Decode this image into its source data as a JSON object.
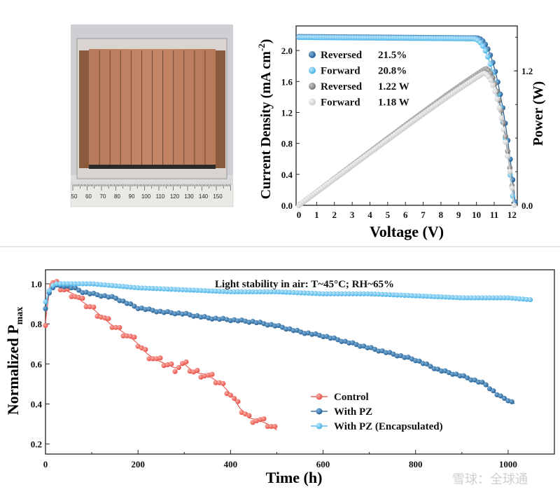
{
  "photo": {
    "ruler_ticks": [
      "50",
      "60",
      "70",
      "80",
      "90",
      "100",
      "110",
      "120",
      "130",
      "140",
      "150"
    ]
  },
  "colors": {
    "dark_blue": "#1f5a8e",
    "light_blue": "#3fb0e8",
    "dark_gray": "#7f7f7f",
    "light_gray": "#d4d4d4",
    "red": "#e8483f"
  },
  "chart_data": [
    {
      "type": "line",
      "title": "",
      "xlabel": "Voltage (V)",
      "ylabel": "Current Density (mA cm-2)",
      "ylabel_main": "Current Density (mA cm",
      "ylabel_sup": "-2",
      "ylabel_close": ")",
      "y2label": "Power (W)",
      "xlim": [
        0,
        12.3
      ],
      "ylim": [
        0,
        2.2
      ],
      "y2lim": [
        0,
        1.52
      ],
      "x_ticks": [
        "0",
        "1",
        "2",
        "3",
        "4",
        "5",
        "6",
        "7",
        "8",
        "9",
        "10",
        "11",
        "12"
      ],
      "y_ticks": [
        "0.0",
        "0.4",
        "0.8",
        "1.2",
        "1.6",
        "2.0"
      ],
      "y2_ticks": [
        "0.0",
        "1.2"
      ],
      "legend": [
        {
          "label": "Reversed",
          "value": "21.5%"
        },
        {
          "label": "Forward",
          "value": "20.8%"
        },
        {
          "label": "Reversed",
          "value": "1.22 W"
        },
        {
          "label": "Forward",
          "value": "1.18 W"
        }
      ],
      "series": [
        {
          "name": "Reversed J-V",
          "axis": "left",
          "color": "#1f5a8e",
          "jsc": 2.18,
          "voc": 12.2,
          "knee": 10.0
        },
        {
          "name": "Forward J-V",
          "axis": "left",
          "color": "#3fb0e8",
          "jsc": 2.17,
          "voc": 12.1,
          "knee": 9.8
        },
        {
          "name": "Reversed Power",
          "axis": "right",
          "color": "#7f7f7f",
          "pmax": 1.22,
          "vmp": 10.5
        },
        {
          "name": "Forward Power",
          "axis": "right",
          "color": "#d4d4d4",
          "pmax": 1.18,
          "vmp": 10.4
        }
      ]
    },
    {
      "type": "line",
      "title": "Light stability in air: T~45°C; RH~65%",
      "xlabel": "Time (h)",
      "ylabel": "Normalized Pmax",
      "ylabel_main": "Normalized P",
      "ylabel_sub": "max",
      "xlim": [
        0,
        1100
      ],
      "ylim": [
        0.15,
        1.07
      ],
      "x_ticks": [
        "0",
        "200",
        "400",
        "600",
        "800",
        "1000"
      ],
      "y_ticks": [
        "0.2",
        "0.4",
        "0.6",
        "0.8",
        "1.0"
      ],
      "series": [
        {
          "name": "Control",
          "color": "#e8483f",
          "x": [
            0,
            10,
            20,
            40,
            60,
            80,
            100,
            120,
            140,
            160,
            180,
            200,
            220,
            240,
            260,
            280,
            300,
            320,
            340,
            360,
            380,
            400,
            420,
            440,
            460,
            480,
            500
          ],
          "y": [
            0.81,
            1.0,
            1.0,
            0.97,
            0.95,
            0.91,
            0.88,
            0.84,
            0.8,
            0.77,
            0.74,
            0.7,
            0.65,
            0.62,
            0.6,
            0.58,
            0.6,
            0.56,
            0.55,
            0.53,
            0.5,
            0.45,
            0.38,
            0.33,
            0.32,
            0.3,
            0.27
          ]
        },
        {
          "name": "With PZ",
          "color": "#1f5a8e",
          "x": [
            0,
            10,
            20,
            40,
            60,
            80,
            100,
            150,
            200,
            250,
            300,
            350,
            400,
            450,
            500,
            550,
            600,
            650,
            700,
            750,
            800,
            850,
            900,
            950,
            980,
            1000,
            1015
          ],
          "y": [
            0.88,
            0.97,
            0.99,
            0.99,
            0.98,
            0.96,
            0.95,
            0.93,
            0.88,
            0.86,
            0.85,
            0.83,
            0.82,
            0.81,
            0.79,
            0.76,
            0.74,
            0.71,
            0.68,
            0.65,
            0.62,
            0.57,
            0.54,
            0.5,
            0.44,
            0.42,
            0.4
          ]
        },
        {
          "name": "With PZ (Encapsulated)",
          "color": "#3fb0e8",
          "x": [
            0,
            10,
            20,
            40,
            60,
            80,
            100,
            150,
            200,
            300,
            400,
            500,
            600,
            700,
            800,
            900,
            1000,
            1050
          ],
          "y": [
            0.91,
            0.98,
            1.0,
            1.0,
            1.0,
            1.0,
            1.0,
            0.99,
            0.98,
            0.97,
            0.96,
            0.96,
            0.95,
            0.95,
            0.94,
            0.93,
            0.93,
            0.92
          ]
        }
      ]
    }
  ],
  "watermark": "雪球：全球通"
}
